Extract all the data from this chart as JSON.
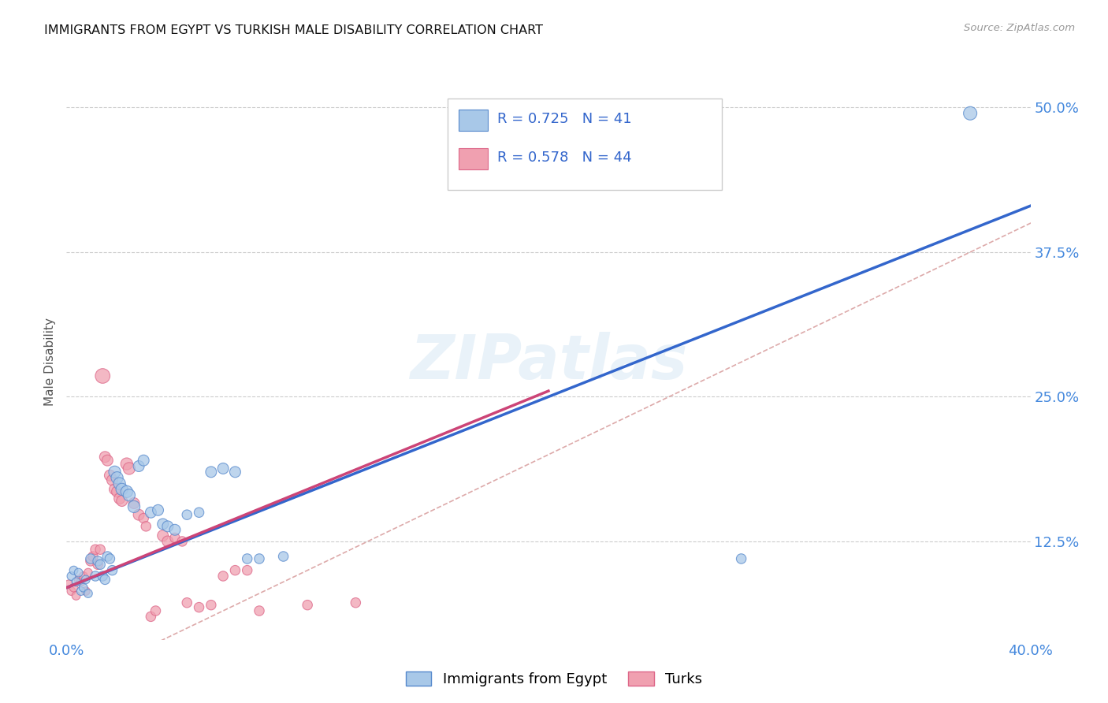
{
  "title": "IMMIGRANTS FROM EGYPT VS TURKISH MALE DISABILITY CORRELATION CHART",
  "source": "Source: ZipAtlas.com",
  "ylabel": "Male Disability",
  "xlim": [
    0.0,
    0.4
  ],
  "ylim": [
    0.04,
    0.52
  ],
  "x_tick_pos": [
    0.0,
    0.05,
    0.1,
    0.15,
    0.2,
    0.25,
    0.3,
    0.35,
    0.4
  ],
  "x_tick_labels": [
    "0.0%",
    "",
    "",
    "",
    "",
    "",
    "",
    "",
    "40.0%"
  ],
  "y_tick_pos": [
    0.125,
    0.25,
    0.375,
    0.5
  ],
  "y_tick_labels": [
    "12.5%",
    "25.0%",
    "37.5%",
    "50.0%"
  ],
  "blue_color": "#a8c8e8",
  "pink_color": "#f0a0b0",
  "blue_edge_color": "#5588cc",
  "pink_edge_color": "#dd6688",
  "blue_line_color": "#3366cc",
  "pink_line_color": "#cc4477",
  "diag_color": "#ddaaaa",
  "tick_label_color": "#4488dd",
  "R_blue": 0.725,
  "N_blue": 41,
  "R_pink": 0.578,
  "N_pink": 44,
  "legend_label_blue": "Immigrants from Egypt",
  "legend_label_pink": "Turks",
  "watermark": "ZIPatlas",
  "blue_line_x": [
    0.0,
    0.4
  ],
  "blue_line_y": [
    0.085,
    0.415
  ],
  "pink_line_x": [
    0.0,
    0.2
  ],
  "pink_line_y": [
    0.085,
    0.255
  ],
  "blue_scatter": [
    [
      0.002,
      0.095
    ],
    [
      0.003,
      0.1
    ],
    [
      0.004,
      0.09
    ],
    [
      0.005,
      0.098
    ],
    [
      0.006,
      0.082
    ],
    [
      0.007,
      0.085
    ],
    [
      0.008,
      0.092
    ],
    [
      0.009,
      0.08
    ],
    [
      0.01,
      0.11
    ],
    [
      0.012,
      0.095
    ],
    [
      0.013,
      0.108
    ],
    [
      0.014,
      0.105
    ],
    [
      0.015,
      0.095
    ],
    [
      0.016,
      0.092
    ],
    [
      0.017,
      0.112
    ],
    [
      0.018,
      0.11
    ],
    [
      0.019,
      0.1
    ],
    [
      0.02,
      0.185
    ],
    [
      0.021,
      0.18
    ],
    [
      0.022,
      0.175
    ],
    [
      0.023,
      0.17
    ],
    [
      0.025,
      0.168
    ],
    [
      0.026,
      0.165
    ],
    [
      0.028,
      0.155
    ],
    [
      0.03,
      0.19
    ],
    [
      0.032,
      0.195
    ],
    [
      0.035,
      0.15
    ],
    [
      0.038,
      0.152
    ],
    [
      0.04,
      0.14
    ],
    [
      0.042,
      0.138
    ],
    [
      0.045,
      0.135
    ],
    [
      0.05,
      0.148
    ],
    [
      0.055,
      0.15
    ],
    [
      0.06,
      0.185
    ],
    [
      0.065,
      0.188
    ],
    [
      0.07,
      0.185
    ],
    [
      0.075,
      0.11
    ],
    [
      0.08,
      0.11
    ],
    [
      0.09,
      0.112
    ],
    [
      0.28,
      0.11
    ],
    [
      0.375,
      0.495
    ]
  ],
  "pink_scatter": [
    [
      0.001,
      0.088
    ],
    [
      0.002,
      0.082
    ],
    [
      0.003,
      0.085
    ],
    [
      0.004,
      0.078
    ],
    [
      0.005,
      0.092
    ],
    [
      0.006,
      0.09
    ],
    [
      0.007,
      0.095
    ],
    [
      0.008,
      0.082
    ],
    [
      0.009,
      0.098
    ],
    [
      0.01,
      0.108
    ],
    [
      0.011,
      0.112
    ],
    [
      0.012,
      0.118
    ],
    [
      0.013,
      0.105
    ],
    [
      0.014,
      0.118
    ],
    [
      0.015,
      0.268
    ],
    [
      0.016,
      0.198
    ],
    [
      0.017,
      0.195
    ],
    [
      0.018,
      0.182
    ],
    [
      0.019,
      0.178
    ],
    [
      0.02,
      0.17
    ],
    [
      0.021,
      0.168
    ],
    [
      0.022,
      0.162
    ],
    [
      0.023,
      0.16
    ],
    [
      0.025,
      0.192
    ],
    [
      0.026,
      0.188
    ],
    [
      0.028,
      0.158
    ],
    [
      0.03,
      0.148
    ],
    [
      0.032,
      0.145
    ],
    [
      0.033,
      0.138
    ],
    [
      0.035,
      0.06
    ],
    [
      0.037,
      0.065
    ],
    [
      0.04,
      0.13
    ],
    [
      0.042,
      0.125
    ],
    [
      0.045,
      0.128
    ],
    [
      0.048,
      0.125
    ],
    [
      0.05,
      0.072
    ],
    [
      0.055,
      0.068
    ],
    [
      0.06,
      0.07
    ],
    [
      0.065,
      0.095
    ],
    [
      0.07,
      0.1
    ],
    [
      0.075,
      0.1
    ],
    [
      0.08,
      0.065
    ],
    [
      0.1,
      0.07
    ],
    [
      0.12,
      0.072
    ]
  ],
  "blue_sizes": [
    60,
    60,
    60,
    60,
    60,
    60,
    60,
    60,
    80,
    80,
    80,
    80,
    80,
    80,
    80,
    80,
    80,
    120,
    120,
    120,
    120,
    120,
    120,
    120,
    100,
    100,
    100,
    100,
    100,
    100,
    100,
    80,
    80,
    100,
    100,
    100,
    80,
    80,
    80,
    80,
    150
  ],
  "pink_sizes": [
    60,
    60,
    60,
    60,
    60,
    60,
    60,
    60,
    60,
    80,
    80,
    80,
    80,
    80,
    180,
    100,
    100,
    100,
    100,
    100,
    100,
    100,
    100,
    120,
    120,
    100,
    100,
    80,
    80,
    80,
    80,
    100,
    100,
    80,
    80,
    80,
    80,
    80,
    80,
    80,
    80,
    80,
    80,
    80
  ]
}
